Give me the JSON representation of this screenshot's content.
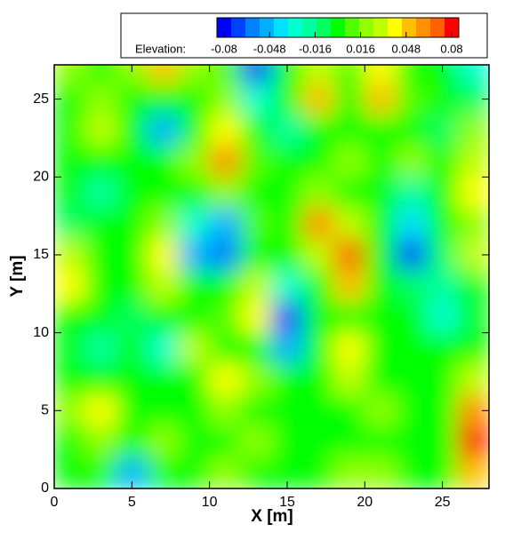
{
  "chart_data": {
    "type": "contour",
    "xlabel": "X [m]",
    "ylabel": "Y [m]",
    "colorbar_label": "Elevation:",
    "xlim": [
      0,
      28
    ],
    "ylim": [
      0,
      27.2
    ],
    "xticks": [
      0,
      5,
      10,
      15,
      20,
      25
    ],
    "yticks": [
      0,
      5,
      10,
      15,
      20,
      25
    ],
    "clim": [
      -0.08,
      0.08
    ],
    "cticks": [
      -0.08,
      -0.048,
      -0.016,
      0.016,
      0.048,
      0.08
    ],
    "colors": [
      "#0000ff",
      "#0040ff",
      "#0080ff",
      "#00b0ff",
      "#00e0ff",
      "#00ffd0",
      "#00ffa0",
      "#00ff60",
      "#00ff00",
      "#50ff00",
      "#90ff00",
      "#c0ff00",
      "#ffff00",
      "#ffc000",
      "#ff9000",
      "#ff6000",
      "#ff0000"
    ],
    "x": [
      1,
      3,
      5,
      7,
      9,
      11,
      13,
      15,
      17,
      19,
      21,
      23,
      25,
      27
    ],
    "y": [
      27,
      25,
      23,
      21,
      19,
      17,
      15,
      13,
      11,
      9,
      7,
      5,
      3,
      1
    ],
    "z": [
      [
        0.02,
        0.0,
        0.02,
        0.05,
        0.02,
        0.01,
        -0.07,
        0.0,
        0.03,
        0.01,
        0.04,
        0.0,
        0.0,
        -0.03
      ],
      [
        0.0,
        0.02,
        0.0,
        0.0,
        0.0,
        0.02,
        -0.03,
        0.0,
        0.05,
        0.0,
        0.05,
        0.01,
        0.0,
        -0.01
      ],
      [
        0.0,
        0.03,
        0.0,
        -0.05,
        0.0,
        0.04,
        0.0,
        -0.02,
        0.0,
        0.0,
        0.0,
        0.0,
        -0.01,
        0.02
      ],
      [
        0.0,
        0.0,
        0.0,
        0.0,
        0.02,
        0.06,
        0.01,
        0.0,
        0.0,
        0.02,
        0.0,
        0.02,
        0.0,
        0.03
      ],
      [
        0.0,
        -0.02,
        0.0,
        0.0,
        0.0,
        0.02,
        0.0,
        0.0,
        0.02,
        0.0,
        0.0,
        -0.02,
        0.0,
        0.04
      ],
      [
        -0.01,
        0.0,
        0.0,
        0.02,
        -0.03,
        -0.05,
        0.01,
        0.0,
        0.06,
        0.03,
        0.0,
        -0.04,
        0.0,
        0.02
      ],
      [
        0.03,
        0.0,
        0.0,
        0.04,
        -0.05,
        -0.06,
        0.0,
        0.0,
        0.03,
        0.07,
        0.0,
        -0.07,
        -0.01,
        0.03
      ],
      [
        0.04,
        0.0,
        0.0,
        0.03,
        0.0,
        0.0,
        0.03,
        -0.03,
        0.0,
        0.05,
        0.0,
        -0.01,
        -0.02,
        0.0
      ],
      [
        0.0,
        0.0,
        -0.01,
        0.0,
        0.0,
        0.01,
        0.04,
        -0.07,
        0.0,
        0.0,
        0.0,
        0.0,
        -0.03,
        0.0
      ],
      [
        0.0,
        -0.02,
        0.0,
        -0.03,
        0.03,
        0.0,
        0.0,
        -0.05,
        0.0,
        0.04,
        0.0,
        0.0,
        0.0,
        0.0
      ],
      [
        0.0,
        0.0,
        0.0,
        0.0,
        0.0,
        0.04,
        0.02,
        0.0,
        0.0,
        0.03,
        0.0,
        0.0,
        0.0,
        0.03
      ],
      [
        0.02,
        0.04,
        0.0,
        0.0,
        0.0,
        0.02,
        0.0,
        0.0,
        0.0,
        0.0,
        0.02,
        0.0,
        0.0,
        0.06
      ],
      [
        0.0,
        0.02,
        0.0,
        0.02,
        0.0,
        0.0,
        0.02,
        0.0,
        0.0,
        0.0,
        0.0,
        0.0,
        0.0,
        0.08
      ],
      [
        0.0,
        0.0,
        -0.05,
        0.0,
        0.0,
        0.02,
        0.0,
        0.0,
        0.0,
        0.02,
        0.02,
        0.0,
        0.0,
        0.05
      ]
    ]
  }
}
